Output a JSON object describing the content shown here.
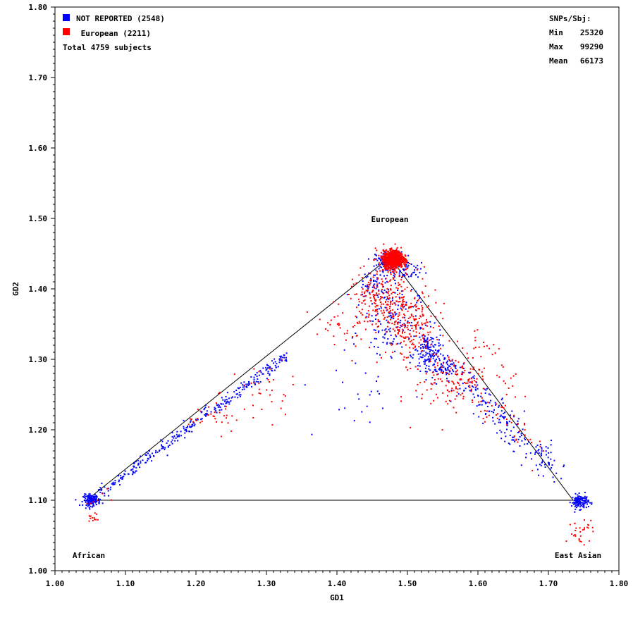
{
  "chart_data": {
    "type": "scatter",
    "xlabel": "GD1",
    "ylabel": "GD2",
    "xlim": [
      1.0,
      1.8
    ],
    "ylim": [
      1.0,
      1.8
    ],
    "x_ticks": [
      "1.00",
      "1.10",
      "1.20",
      "1.30",
      "1.40",
      "1.50",
      "1.60",
      "1.70",
      "1.80"
    ],
    "y_ticks": [
      "1.00",
      "1.10",
      "1.20",
      "1.30",
      "1.40",
      "1.50",
      "1.60",
      "1.70",
      "1.80"
    ],
    "legend": {
      "placement": "top-left",
      "entries": [
        {
          "label": "NOT REPORTED (2548)",
          "color": "#0000ff"
        },
        {
          "label": " European (2211)",
          "color": "#ff0000"
        }
      ],
      "total": "Total 4759 subjects"
    },
    "stats": {
      "title": "SNPs/Sbj:",
      "rows": [
        {
          "label": "Min",
          "value": "25320"
        },
        {
          "label": "Max",
          "value": "99290"
        },
        {
          "label": "Mean",
          "value": "66173"
        }
      ]
    },
    "reference_triangle": {
      "color": "#000000",
      "vertices": [
        {
          "x": 1.045,
          "y": 1.1
        },
        {
          "x": 1.475,
          "y": 1.445
        },
        {
          "x": 1.735,
          "y": 1.1
        }
      ]
    },
    "annotations": [
      {
        "text": "European",
        "x": 1.475,
        "y": 1.495
      },
      {
        "text": "African",
        "x": 1.048,
        "y": 1.018
      },
      {
        "text": "East Asian",
        "x": 1.742,
        "y": 1.018
      }
    ],
    "series": [
      {
        "name": "NOT REPORTED (2548)",
        "color": "#0000ff",
        "clusters": [
          {
            "x": 1.475,
            "y": 1.44,
            "sx": 0.01,
            "sy": 0.006,
            "n": 160
          },
          {
            "x": 1.052,
            "y": 1.1,
            "sx": 0.006,
            "sy": 0.004,
            "n": 130
          },
          {
            "x": 1.745,
            "y": 1.098,
            "sx": 0.006,
            "sy": 0.005,
            "n": 130
          },
          {
            "x": 1.53,
            "y": 1.305,
            "sx": 0.01,
            "sy": 0.016,
            "n": 120
          },
          {
            "x": 1.475,
            "y": 1.36,
            "sx": 0.02,
            "sy": 0.025,
            "n": 140
          },
          {
            "x": 1.55,
            "y": 1.285,
            "sx": 0.01,
            "sy": 0.006,
            "n": 40
          },
          {
            "x": 1.5,
            "y": 1.425,
            "sx": 0.01,
            "sy": 0.006,
            "n": 40
          },
          {
            "x": 1.43,
            "y": 1.25,
            "sx": 0.04,
            "sy": 0.04,
            "n": 25
          }
        ],
        "segments": [
          {
            "x1": 1.052,
            "y1": 1.102,
            "x2": 1.33,
            "y2": 1.305,
            "spread": 0.004,
            "n": 320
          },
          {
            "x1": 1.52,
            "y1": 1.33,
            "x2": 1.705,
            "y2": 1.145,
            "spread": 0.01,
            "n": 260
          },
          {
            "x1": 1.44,
            "y1": 1.395,
            "x2": 1.48,
            "y2": 1.43,
            "spread": 0.01,
            "n": 80
          }
        ]
      },
      {
        "name": "European (2211)",
        "color": "#ff0000",
        "clusters": [
          {
            "x": 1.48,
            "y": 1.442,
            "sx": 0.007,
            "sy": 0.006,
            "n": 1100
          },
          {
            "x": 1.465,
            "y": 1.385,
            "sx": 0.025,
            "sy": 0.022,
            "n": 250
          },
          {
            "x": 1.505,
            "y": 1.345,
            "sx": 0.02,
            "sy": 0.025,
            "n": 180
          },
          {
            "x": 1.56,
            "y": 1.27,
            "sx": 0.025,
            "sy": 0.025,
            "n": 120
          },
          {
            "x": 1.23,
            "y": 1.22,
            "sx": 0.02,
            "sy": 0.012,
            "n": 35
          },
          {
            "x": 1.3,
            "y": 1.255,
            "sx": 0.02,
            "sy": 0.02,
            "n": 30
          },
          {
            "x": 1.4,
            "y": 1.34,
            "sx": 0.02,
            "sy": 0.02,
            "n": 30
          },
          {
            "x": 1.054,
            "y": 1.073,
            "sx": 0.004,
            "sy": 0.004,
            "n": 12
          },
          {
            "x": 1.745,
            "y": 1.056,
            "sx": 0.01,
            "sy": 0.008,
            "n": 30
          },
          {
            "x": 1.07,
            "y": 1.1,
            "sx": 0.015,
            "sy": 0.01,
            "n": 8
          }
        ],
        "segments": [
          {
            "x1": 1.56,
            "y1": 1.3,
            "x2": 1.68,
            "y2": 1.17,
            "spread": 0.012,
            "n": 70
          },
          {
            "x1": 1.6,
            "y1": 1.35,
            "x2": 1.65,
            "y2": 1.24,
            "spread": 0.01,
            "n": 30
          }
        ]
      }
    ]
  }
}
